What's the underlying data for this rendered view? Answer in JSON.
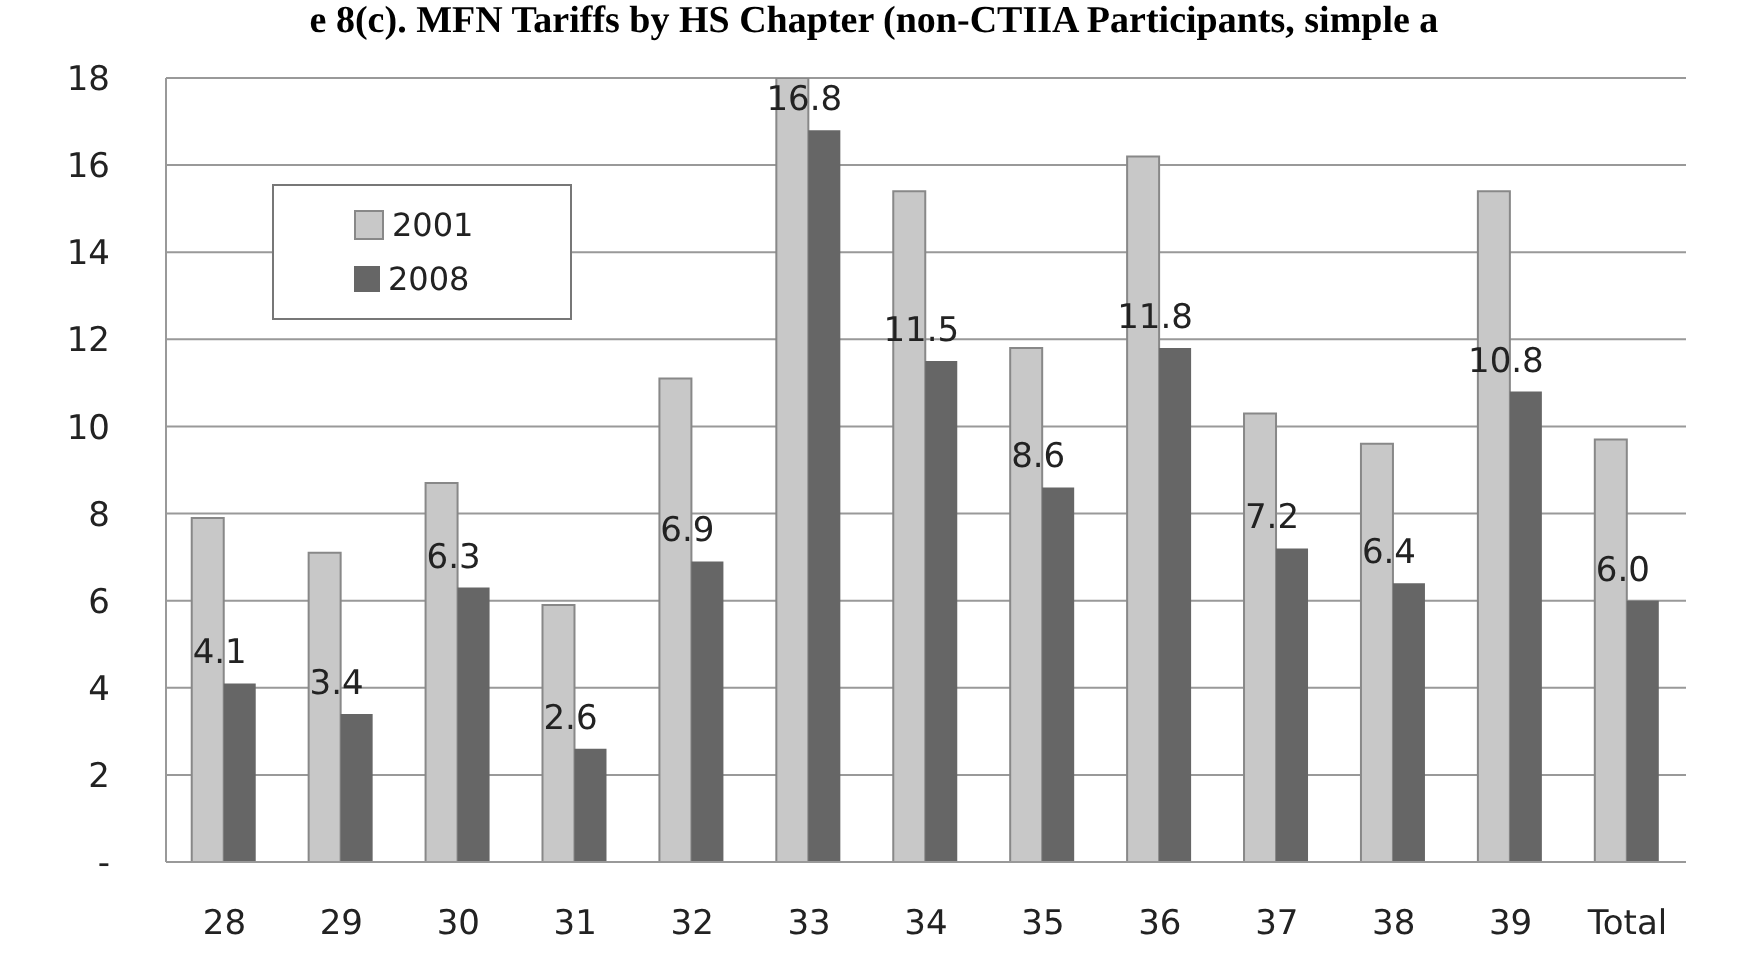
{
  "chart_data": {
    "type": "bar",
    "title": "e 8(c). MFN Tariffs by HS Chapter (non-CTIIA Participants, simple a",
    "categories": [
      "28",
      "29",
      "30",
      "31",
      "32",
      "33",
      "34",
      "35",
      "36",
      "37",
      "38",
      "39",
      "Total"
    ],
    "series": [
      {
        "name": "2001",
        "color": "#c8c8c8",
        "values": [
          7.9,
          7.1,
          8.7,
          5.9,
          11.1,
          18.0,
          15.4,
          11.8,
          16.2,
          10.3,
          9.6,
          15.4,
          9.7
        ]
      },
      {
        "name": "2008",
        "color": "#666666",
        "values": [
          4.1,
          3.4,
          6.3,
          2.6,
          6.9,
          16.8,
          11.5,
          8.6,
          11.8,
          7.2,
          6.4,
          10.8,
          6.0
        ],
        "value_labels": [
          "4.1",
          "3.4",
          "6.3",
          "2.6",
          "6.9",
          "16.8",
          "11.5",
          "8.6",
          "11.8",
          "7.2",
          "6.4",
          "10.8",
          "6.0"
        ]
      }
    ],
    "ylim": [
      0,
      18
    ],
    "yticks": [
      {
        "value": 0,
        "label": "-"
      },
      2,
      4,
      6,
      8,
      10,
      12,
      14,
      16,
      18
    ],
    "grid": "y",
    "legend": "top left"
  }
}
